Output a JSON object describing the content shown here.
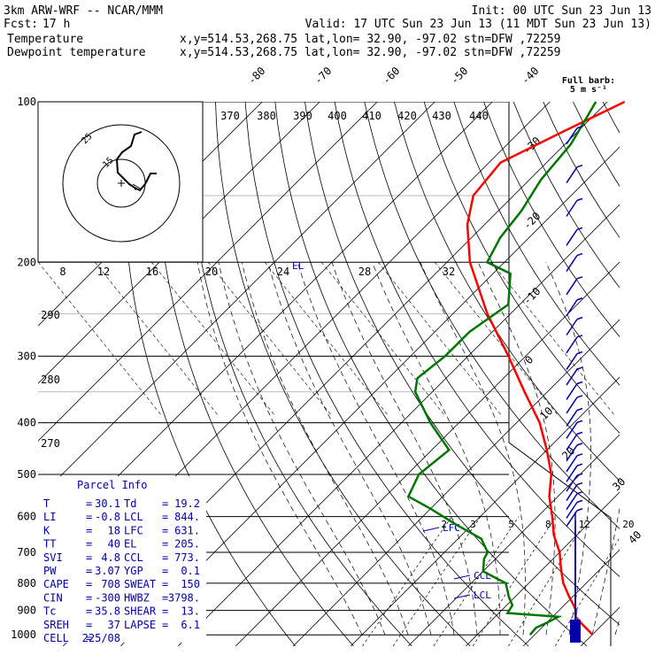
{
  "header": {
    "model": "3km ARW-WRF -- NCAR/MMM",
    "init": "Init: 00 UTC Sun 23 Jun 13",
    "fcst_label": "Fcst:",
    "fcst_value": "17 h",
    "valid": "Valid: 17 UTC Sun 23 Jun 13 (11 MDT Sun 23 Jun 13)",
    "series": [
      {
        "name": "Temperature",
        "loc": "x,y=514.53,268.75   lat,lon= 32.90, -97.02   stn=DFW ,72259",
        "color": "#ff0000"
      },
      {
        "name": "Dewpoint temperature",
        "loc": "x,y=514.53,268.75   lat,lon= 32.90, -97.02   stn=DFW ,72259",
        "color": "#007700"
      }
    ],
    "barb_legend": [
      "Full barb:",
      "5 m s⁻¹"
    ]
  },
  "chart_data": {
    "type": "line",
    "subtype": "skew-T log-P diagram",
    "pressure_levels": [
      "100",
      "200",
      "300",
      "400",
      "500",
      "600",
      "700",
      "800",
      "900",
      "1000"
    ],
    "isotherm_labels": [
      "-80",
      "-70",
      "-60",
      "-50",
      "-40",
      "-30",
      "-20",
      "-10",
      "0",
      "10",
      "20",
      "30",
      "40"
    ],
    "theta_labels": [
      "370",
      "380",
      "390",
      "400",
      "410",
      "420",
      "430",
      "440"
    ],
    "theta_left_labels": [
      "290",
      "280",
      "270"
    ],
    "mixing_ratio_labels": [
      "2",
      "3",
      "5",
      "8",
      "12",
      "20"
    ],
    "hodograph": {
      "ring_labels": [
        "25",
        "15"
      ],
      "kts_label": "kts",
      "scale_labels": [
        "8",
        "12",
        "16",
        "20",
        "24",
        "28",
        "32"
      ]
    },
    "markers": {
      "el": "EL",
      "lfc": "LFC",
      "ccl": "CCL",
      "lcl": "LCL"
    },
    "series": [
      {
        "name": "Temperature",
        "color": "#ff0000",
        "points": [
          [
            1000,
            30.1
          ],
          [
            950,
            26
          ],
          [
            925,
            24
          ],
          [
            900,
            23
          ],
          [
            850,
            19.5
          ],
          [
            800,
            16
          ],
          [
            750,
            13
          ],
          [
            700,
            10
          ],
          [
            650,
            6
          ],
          [
            600,
            2.5
          ],
          [
            550,
            -1.5
          ],
          [
            500,
            -5
          ],
          [
            450,
            -10
          ],
          [
            400,
            -16
          ],
          [
            350,
            -24
          ],
          [
            300,
            -33
          ],
          [
            250,
            -44
          ],
          [
            200,
            -56
          ],
          [
            170,
            -63
          ],
          [
            150,
            -67
          ],
          [
            130,
            -68
          ],
          [
            115,
            -63
          ],
          [
            100,
            -57
          ]
        ]
      },
      {
        "name": "Dewpoint temperature",
        "color": "#007700",
        "points": [
          [
            1000,
            19.2
          ],
          [
            970,
            19
          ],
          [
            950,
            20
          ],
          [
            925,
            21
          ],
          [
            910,
            11.5
          ],
          [
            880,
            11
          ],
          [
            850,
            9
          ],
          [
            800,
            6
          ],
          [
            760,
            0
          ],
          [
            720,
            -2
          ],
          [
            700,
            -2.5
          ],
          [
            660,
            -6
          ],
          [
            620,
            -13
          ],
          [
            580,
            -20
          ],
          [
            550,
            -26
          ],
          [
            500,
            -28
          ],
          [
            450,
            -27
          ],
          [
            400,
            -35
          ],
          [
            350,
            -43
          ],
          [
            330,
            -45
          ],
          [
            300,
            -44
          ],
          [
            270,
            -44
          ],
          [
            240,
            -42
          ],
          [
            210,
            -47
          ],
          [
            200,
            -53
          ],
          [
            180,
            -55
          ],
          [
            160,
            -56
          ],
          [
            140,
            -58
          ],
          [
            120,
            -59
          ],
          [
            100,
            -62
          ]
        ]
      }
    ],
    "wind_barbs_kts_at": [
      "100",
      "1000"
    ]
  },
  "parcel_info": {
    "title": "Parcel Info",
    "rows": [
      [
        "T",
        "30.1",
        "Td",
        "19.2"
      ],
      [
        "LI",
        "-0.8",
        "LCL",
        "844."
      ],
      [
        "K",
        "18",
        "LFC",
        "631."
      ],
      [
        "TT",
        "40",
        "EL",
        "205."
      ],
      [
        "SVI",
        "4.8",
        "CCL",
        "773."
      ],
      [
        "PW",
        "3.07",
        "YGP",
        "0.1"
      ],
      [
        "CAPE",
        "708",
        "SWEAT",
        "150"
      ],
      [
        "CIN",
        "-300",
        "HWBZ",
        "3798."
      ],
      [
        "Tc",
        "35.8",
        "SHEAR",
        "13."
      ],
      [
        "SREH",
        "37",
        "LAPSE",
        "6.1"
      ],
      [
        "CELL",
        "225/08",
        "",
        ""
      ]
    ]
  }
}
